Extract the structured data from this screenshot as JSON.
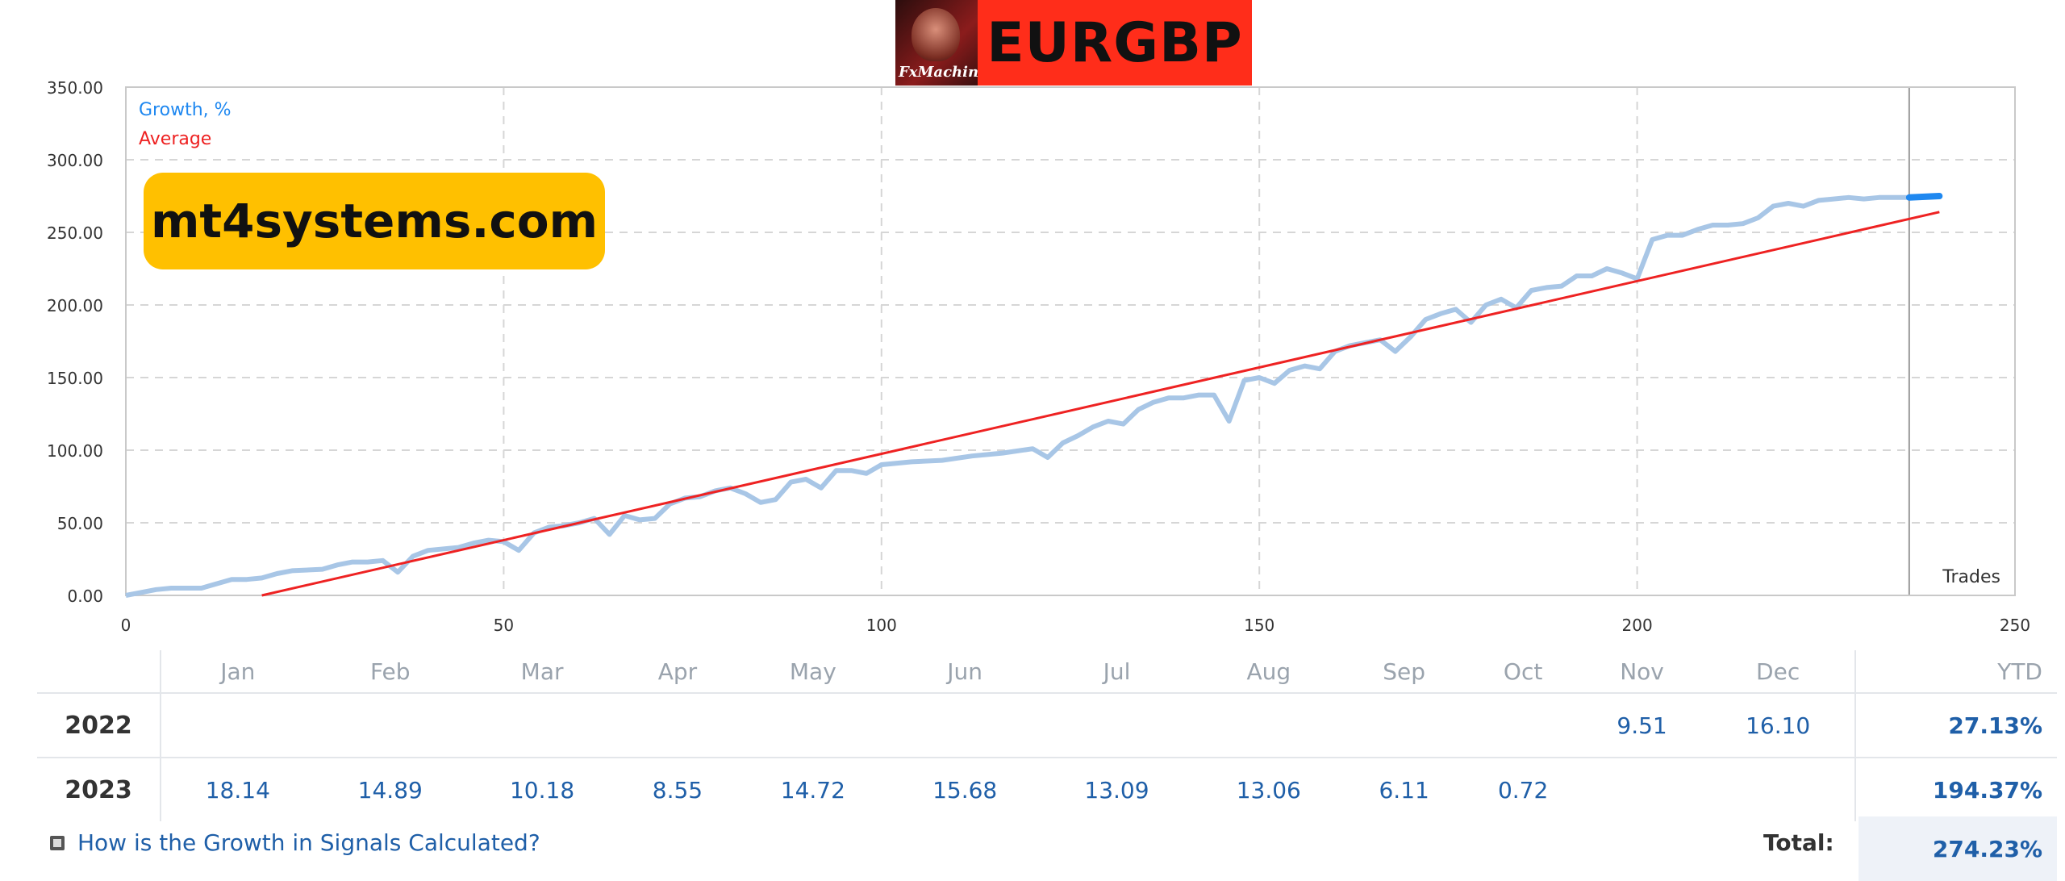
{
  "header": {
    "symbol": "EURGBP",
    "logo_text": "FxMachine"
  },
  "watermark": "mt4systems.com",
  "chart_data": {
    "type": "line",
    "xlabel": "Trades",
    "ylabel": "",
    "xlim": [
      0,
      250
    ],
    "ylim": [
      0,
      350
    ],
    "x_ticks": [
      "0",
      "50",
      "100",
      "150",
      "200",
      "250"
    ],
    "y_ticks": [
      "0.00",
      "50.00",
      "100.00",
      "150.00",
      "200.00",
      "250.00",
      "300.00",
      "350.00"
    ],
    "legend": [
      "Growth, %",
      "Average"
    ],
    "legend_position": "top-left",
    "grid": true,
    "colors": {
      "growth": "#a8c6e6",
      "growth_recent": "#1f88f0",
      "average": "#ee2222",
      "marker_line": "#999999"
    },
    "marker_x": 236,
    "series": [
      {
        "name": "Growth, %",
        "x": [
          0,
          4,
          6,
          10,
          14,
          16,
          18,
          20,
          22,
          26,
          28,
          30,
          32,
          34,
          36,
          38,
          40,
          44,
          46,
          48,
          50,
          52,
          54,
          56,
          58,
          60,
          62,
          64,
          66,
          68,
          70,
          72,
          74,
          76,
          78,
          80,
          82,
          84,
          86,
          88,
          90,
          92,
          94,
          96,
          98,
          100,
          104,
          108,
          112,
          116,
          120,
          122,
          124,
          126,
          128,
          130,
          132,
          134,
          136,
          138,
          140,
          142,
          144,
          146,
          148,
          150,
          152,
          154,
          156,
          158,
          160,
          162,
          164,
          166,
          168,
          170,
          172,
          174,
          176,
          178,
          180,
          182,
          184,
          186,
          188,
          190,
          192,
          194,
          196,
          198,
          200,
          202,
          204,
          206,
          208,
          210,
          212,
          214,
          216,
          218,
          220,
          222,
          224,
          226,
          228,
          230,
          232,
          234,
          236
        ],
        "values": [
          0,
          4,
          5,
          5,
          11,
          11,
          12,
          15,
          17,
          18,
          21,
          23,
          23,
          24,
          16,
          27,
          31,
          33,
          36,
          38,
          37,
          31,
          43,
          47,
          48,
          50,
          53,
          42,
          55,
          52,
          53,
          63,
          67,
          68,
          72,
          74,
          70,
          64,
          66,
          78,
          80,
          74,
          86,
          86,
          84,
          90,
          92,
          93,
          96,
          98,
          101,
          95,
          105,
          110,
          116,
          120,
          118,
          128,
          133,
          136,
          136,
          138,
          138,
          120,
          148,
          150,
          146,
          155,
          158,
          156,
          168,
          172,
          174,
          176,
          168,
          178,
          190,
          194,
          197,
          188,
          200,
          204,
          198,
          210,
          212,
          213,
          220,
          220,
          225,
          222,
          218,
          245,
          248,
          248,
          252,
          255,
          255,
          256,
          260,
          268,
          270,
          268,
          272,
          273,
          274,
          273,
          274,
          274,
          274
        ]
      },
      {
        "name": "Average",
        "x": [
          18,
          240
        ],
        "values": [
          0,
          264
        ]
      }
    ]
  },
  "table": {
    "months": [
      "Jan",
      "Feb",
      "Mar",
      "Apr",
      "May",
      "Jun",
      "Jul",
      "Aug",
      "Sep",
      "Oct",
      "Nov",
      "Dec"
    ],
    "ytd_label": "YTD",
    "rows": [
      {
        "year": "2022",
        "values": [
          "",
          "",
          "",
          "",
          "",
          "",
          "",
          "",
          "",
          "",
          "9.51",
          "16.10"
        ],
        "ytd": "27.13%"
      },
      {
        "year": "2023",
        "values": [
          "18.14",
          "14.89",
          "10.18",
          "8.55",
          "14.72",
          "15.68",
          "13.09",
          "13.06",
          "6.11",
          "0.72",
          "",
          ""
        ],
        "ytd": "194.37%"
      }
    ]
  },
  "footer": {
    "link_text": "How is the Growth in Signals Calculated?",
    "total_label": "Total:",
    "total_value": "274.23%"
  }
}
